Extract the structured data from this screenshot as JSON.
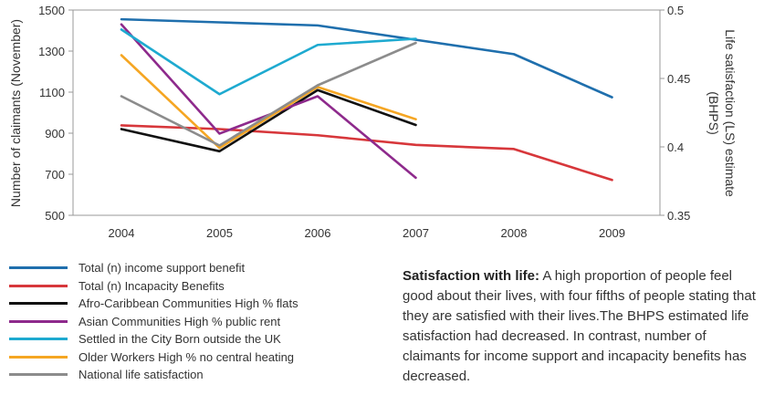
{
  "chart_data": {
    "type": "line",
    "x": [
      "2004",
      "2005",
      "2006",
      "2007",
      "2008",
      "2009"
    ],
    "ylabel": "Number of claimants (November)",
    "ylabel_right": [
      "Life satisfaction (LS) estimate",
      "(BHPS)"
    ],
    "y_ticks": [
      "500",
      "700",
      "900",
      "1100",
      "1300",
      "1500"
    ],
    "y2_ticks": [
      "0.35",
      "0.4",
      "0.45",
      "0.5"
    ],
    "ylim": [
      500,
      1500
    ],
    "y2lim": [
      0.35,
      0.5
    ],
    "grid": false,
    "legend_position": "bottom-left",
    "series": [
      {
        "name": "Total (n) income support benefit",
        "color": "#1f6fad",
        "axis": "left",
        "values": [
          1455,
          1440,
          1425,
          1355,
          1285,
          1075
        ]
      },
      {
        "name": "Total (n) Incapacity Benefits",
        "color": "#d7373b",
        "axis": "left",
        "values": [
          938,
          920,
          890,
          843,
          823,
          672
        ]
      },
      {
        "name": "Afro-Caribbean Communities High % flats",
        "color": "#111111",
        "axis": "left",
        "values": [
          920,
          812,
          1110,
          940,
          null,
          null
        ]
      },
      {
        "name": "Asian Communities High % public rent",
        "color": "#8e2a8c",
        "axis": "left",
        "values": [
          1430,
          898,
          1080,
          683,
          null,
          null
        ]
      },
      {
        "name": "Settled in the City Born outside the UK",
        "color": "#1eaad0",
        "axis": "left",
        "values": [
          1405,
          1090,
          1330,
          1360,
          null,
          null
        ]
      },
      {
        "name": "Older Workers High % no central heating",
        "color": "#f5a623",
        "axis": "left",
        "values": [
          1280,
          828,
          1125,
          968,
          null,
          null
        ]
      },
      {
        "name": "National life satisfaction",
        "color": "#8c8c8c",
        "axis": "right",
        "values": [
          0.437,
          0.401,
          0.445,
          0.476,
          null,
          null
        ]
      }
    ]
  },
  "note": {
    "title": "Satisfaction with life:",
    "body": "A high proportion of people feel good about their lives, with four fifths of people stating that they are satisfied with their lives.The BHPS estimated life satisfaction had decreased. In contrast, number of claimants for income support and incapacity benefits has decreased."
  }
}
